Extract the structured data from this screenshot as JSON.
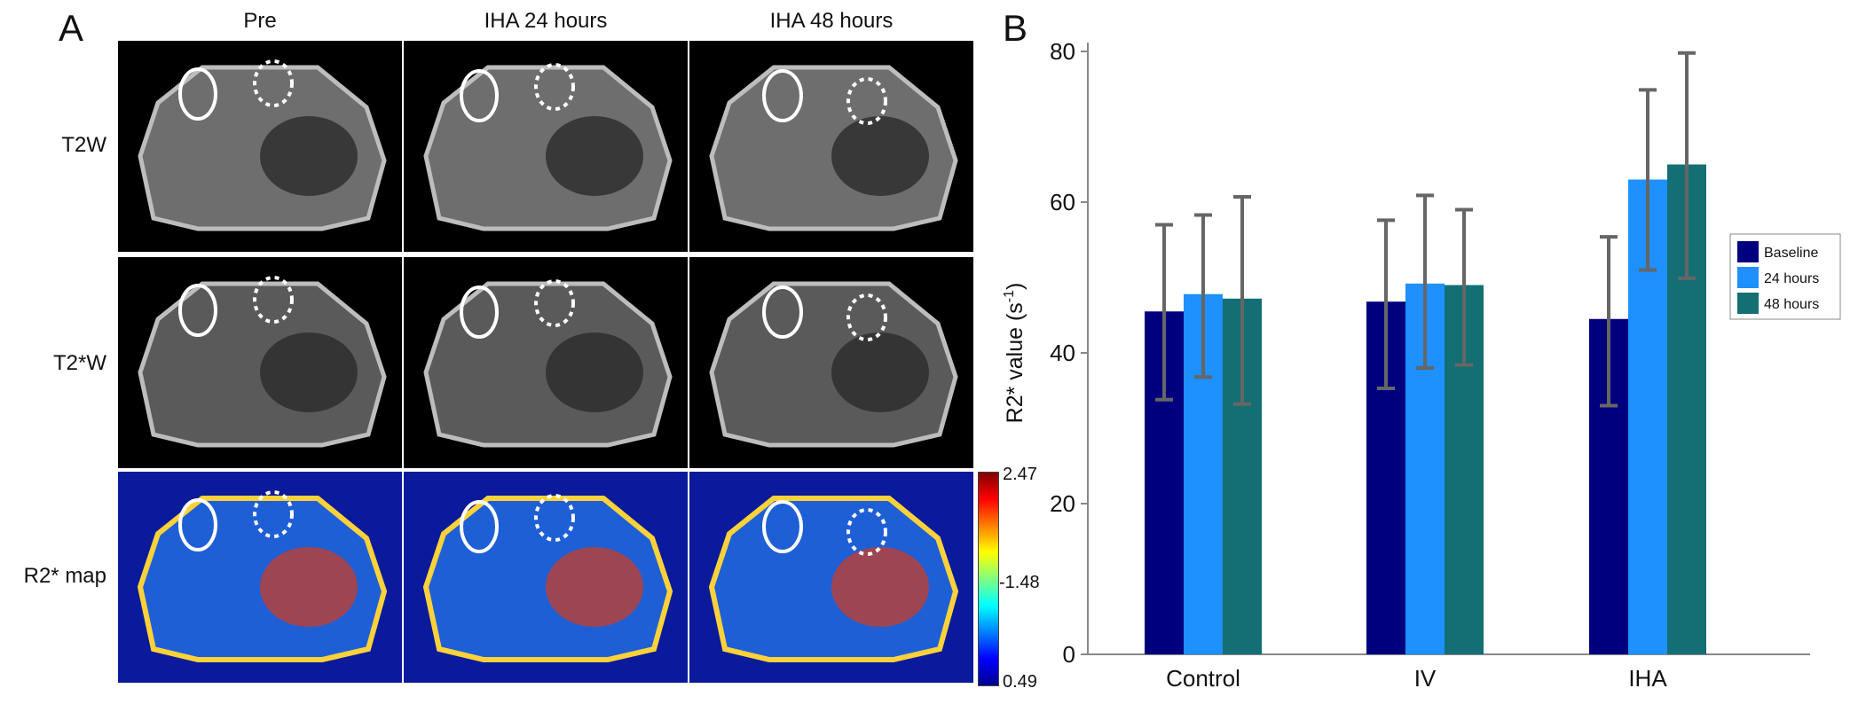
{
  "panelA": {
    "letter": "A",
    "columns": [
      "Pre",
      "IHA 24 hours",
      "IHA 48 hours"
    ],
    "rows": [
      "T2W",
      "T2*W",
      "R2* map"
    ],
    "colorbar": {
      "max": "2.47",
      "mid": "-1.48",
      "min": "0.49"
    }
  },
  "panelB": {
    "letter": "B"
  },
  "chart_data": {
    "type": "bar",
    "categories": [
      "Control",
      "IV",
      "IHA"
    ],
    "ylabel": "R2* value (s-1)",
    "ylim": [
      0,
      80
    ],
    "yticks": [
      0,
      20,
      40,
      60,
      80
    ],
    "legend_position": "right",
    "series": [
      {
        "name": "Baseline",
        "color": "#00007F",
        "values": [
          45.5,
          46.8,
          44.5
        ],
        "err_low": [
          33.8,
          35.3,
          33.0
        ],
        "err_high": [
          57.0,
          57.6,
          55.4
        ]
      },
      {
        "name": "24 hours",
        "color": "#1E90FF",
        "values": [
          47.8,
          49.2,
          63.0
        ],
        "err_low": [
          36.8,
          38.0,
          51.0
        ],
        "err_high": [
          58.3,
          60.9,
          74.9
        ]
      },
      {
        "name": "48 hours",
        "color": "#136F73",
        "values": [
          47.2,
          49.0,
          65.0
        ],
        "err_low": [
          33.2,
          38.4,
          49.9
        ],
        "err_high": [
          60.7,
          59.0,
          79.8
        ]
      }
    ]
  }
}
